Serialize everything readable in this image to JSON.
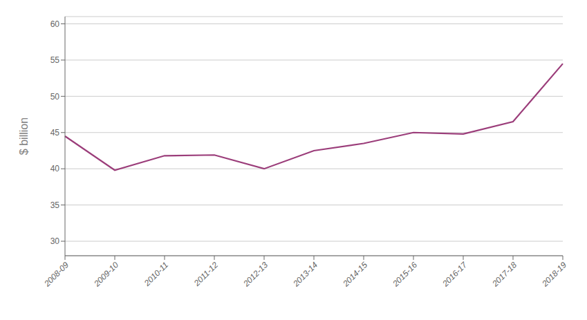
{
  "chart_data": {
    "type": "line",
    "categories": [
      "2008-09",
      "2009-10",
      "2010-11",
      "2011-12",
      "2012-13",
      "2013-14",
      "2014-15",
      "2015-16",
      "2016-17",
      "2017-18",
      "2018-19"
    ],
    "values": [
      44.5,
      39.8,
      41.8,
      41.9,
      40.0,
      42.5,
      43.5,
      45.0,
      44.8,
      46.5,
      54.5
    ],
    "color": "#9b3d7a",
    "ylabel": "$ billion",
    "ylim": [
      28,
      61
    ],
    "yticks": [
      30,
      35,
      40,
      45,
      50,
      55,
      60
    ],
    "grid": true
  }
}
